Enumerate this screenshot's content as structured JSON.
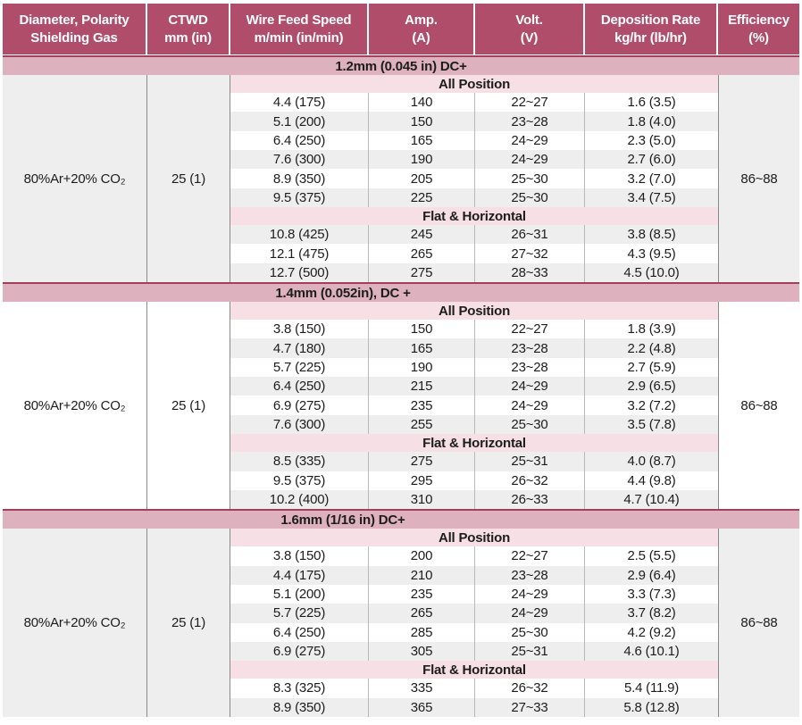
{
  "table": {
    "header": [
      {
        "line1": "Diameter, Polarity",
        "line2": "Shielding Gas"
      },
      {
        "line1": "CTWD",
        "line2": "mm (in)"
      },
      {
        "line1": "Wire Feed Speed",
        "line2": "m/min (in/min)"
      },
      {
        "line1": "Amp.",
        "line2": "(A)"
      },
      {
        "line1": "Volt.",
        "line2": "(V)"
      },
      {
        "line1": "Deposition Rate",
        "line2": "kg/hr (lb/hr)"
      },
      {
        "line1": "Efficiency",
        "line2": "(%)"
      }
    ],
    "sections": [
      {
        "title": "1.2mm (0.045 in) DC+",
        "shielding_gas": "80%Ar+20% CO₂",
        "ctwd": "25 (1)",
        "efficiency": "86~88",
        "panel_shade": "gray",
        "blocks": [
          {
            "label": "All Position",
            "stripe_start": "white",
            "rows": [
              [
                "4.4 (175)",
                "140",
                "22~27",
                "1.6 (3.5)"
              ],
              [
                "5.1 (200)",
                "150",
                "23~28",
                "1.8 (4.0)"
              ],
              [
                "6.4 (250)",
                "165",
                "24~29",
                "2.3 (5.0)"
              ],
              [
                "7.6 (300)",
                "190",
                "24~29",
                "2.7 (6.0)"
              ],
              [
                "8.9 (350)",
                "205",
                "25~30",
                "3.2 (7.0)"
              ],
              [
                "9.5 (375)",
                "225",
                "25~30",
                "3.4 (7.5)"
              ]
            ]
          },
          {
            "label": "Flat & Horizontal",
            "stripe_start": "gray",
            "rows": [
              [
                "10.8 (425)",
                "245",
                "26~31",
                "3.8 (8.5)"
              ],
              [
                "12.1 (475)",
                "265",
                "27~32",
                "4.3 (9.5)"
              ],
              [
                "12.7 (500)",
                "275",
                "28~33",
                "4.5 (10.0)"
              ]
            ]
          }
        ]
      },
      {
        "title": "1.4mm (0.052in), DC +",
        "shielding_gas": "80%Ar+20% CO₂",
        "ctwd": "25 (1)",
        "efficiency": "86~88",
        "panel_shade": "white",
        "blocks": [
          {
            "label": "All Position",
            "stripe_start": "white",
            "rows": [
              [
                "3.8 (150)",
                "150",
                "22~27",
                "1.8 (3.9)"
              ],
              [
                "4.7 (180)",
                "165",
                "23~28",
                "2.2 (4.8)"
              ],
              [
                "5.7 (225)",
                "190",
                "23~28",
                "2.7 (5.9)"
              ],
              [
                "6.4 (250)",
                "215",
                "24~29",
                "2.9 (6.5)"
              ],
              [
                "6.9 (275)",
                "235",
                "24~29",
                "3.2 (7.2)"
              ],
              [
                "7.6 (300)",
                "255",
                "25~30",
                "3.5 (7.8)"
              ]
            ]
          },
          {
            "label": "Flat & Horizontal",
            "stripe_start": "gray",
            "rows": [
              [
                "8.5 (335)",
                "275",
                "25~31",
                "4.0 (8.7)"
              ],
              [
                "9.5 (375)",
                "295",
                "26~32",
                "4.4 (9.8)"
              ],
              [
                "10.2 (400)",
                "310",
                "26~33",
                "4.7 (10.4)"
              ]
            ]
          }
        ]
      },
      {
        "title": "1.6mm (1/16 in) DC+",
        "shielding_gas": "80%Ar+20% CO₂",
        "ctwd": "25 (1)",
        "efficiency": "86~88",
        "panel_shade": "gray",
        "blocks": [
          {
            "label": "All Position",
            "stripe_start": "white",
            "rows": [
              [
                "3.8 (150)",
                "200",
                "22~27",
                "2.5 (5.5)"
              ],
              [
                "4.4 (175)",
                "210",
                "23~28",
                "2.9 (6.4)"
              ],
              [
                "5.1 (200)",
                "235",
                "24~29",
                "3.3 (7.3)"
              ],
              [
                "5.7 (225)",
                "265",
                "24~29",
                "3.7 (8.2)"
              ],
              [
                "6.4 (250)",
                "285",
                "25~30",
                "4.2 (9.2)"
              ],
              [
                "6.9 (275)",
                "305",
                "25~31",
                "4.6 (10.1)"
              ]
            ]
          },
          {
            "label": "Flat & Horizontal",
            "stripe_start": "white",
            "rows": [
              [
                "8.3 (325)",
                "335",
                "26~32",
                "5.4 (11.9)"
              ],
              [
                "8.9 (350)",
                "365",
                "27~33",
                "5.8 (12.8)"
              ]
            ]
          }
        ]
      }
    ]
  },
  "colors": {
    "header_bg": "#b04d6a",
    "section_band_bg": "#ddb2be",
    "position_band_bg": "#f6e0e5",
    "section_border": "#a23f5c",
    "stripe_gray": "#eeeeee",
    "text": "#1c1c1c"
  }
}
